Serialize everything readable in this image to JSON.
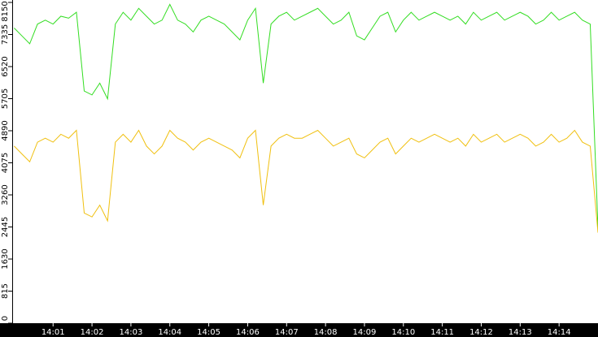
{
  "chart_data": {
    "type": "line",
    "x": [
      840.0,
      840.2,
      840.4,
      840.6,
      840.8,
      841.0,
      841.2,
      841.4,
      841.6,
      841.8,
      842.0,
      842.2,
      842.4,
      842.6,
      842.8,
      843.0,
      843.2,
      843.4,
      843.6,
      843.8,
      844.0,
      844.2,
      844.4,
      844.6,
      844.8,
      845.0,
      845.2,
      845.4,
      845.6,
      845.8,
      846.0,
      846.2,
      846.4,
      846.6,
      846.8,
      847.0,
      847.2,
      847.4,
      847.6,
      847.8,
      848.0,
      848.2,
      848.4,
      848.6,
      848.8,
      849.0,
      849.2,
      849.4,
      849.6,
      849.8,
      850.0,
      850.2,
      850.4,
      850.6,
      850.8,
      851.0,
      851.2,
      851.4,
      851.6,
      851.8,
      852.0,
      852.2,
      852.4,
      852.6,
      852.8,
      853.0,
      853.2,
      853.4,
      853.6,
      853.8,
      854.0,
      854.2,
      854.4,
      854.6,
      854.8,
      855.0
    ],
    "series": [
      {
        "color": "#33dd22",
        "values": [
          7500,
          7300,
          7100,
          7600,
          7700,
          7600,
          7800,
          7750,
          7900,
          5900,
          5800,
          6100,
          5700,
          7600,
          7900,
          7700,
          8000,
          7800,
          7600,
          7700,
          8100,
          7700,
          7600,
          7400,
          7700,
          7800,
          7700,
          7600,
          7400,
          7200,
          7700,
          8000,
          6100,
          7600,
          7800,
          7900,
          7700,
          7800,
          7900,
          8000,
          7800,
          7600,
          7700,
          7900,
          7300,
          7200,
          7500,
          7800,
          7900,
          7400,
          7700,
          7900,
          7700,
          7800,
          7900,
          7800,
          7700,
          7800,
          7600,
          7900,
          7700,
          7800,
          7900,
          7700,
          7800,
          7900,
          7800,
          7600,
          7700,
          7900,
          7700,
          7800,
          7900,
          7700,
          7600,
          2400
        ]
      },
      {
        "color": "#f0c010",
        "values": [
          4500,
          4300,
          4100,
          4600,
          4700,
          4600,
          4800,
          4700,
          4900,
          2800,
          2700,
          3000,
          2600,
          4600,
          4800,
          4600,
          4900,
          4500,
          4300,
          4500,
          4900,
          4700,
          4600,
          4400,
          4600,
          4700,
          4600,
          4500,
          4400,
          4200,
          4700,
          4900,
          3000,
          4500,
          4700,
          4800,
          4700,
          4700,
          4800,
          4900,
          4700,
          4500,
          4600,
          4700,
          4300,
          4200,
          4400,
          4600,
          4700,
          4300,
          4500,
          4700,
          4600,
          4700,
          4800,
          4700,
          4600,
          4700,
          4500,
          4800,
          4600,
          4700,
          4800,
          4600,
          4700,
          4800,
          4700,
          4500,
          4600,
          4800,
          4600,
          4700,
          4900,
          4600,
          4500,
          2300
        ]
      }
    ],
    "xlim": [
      839.95,
      855.0
    ],
    "xticks": [
      {
        "value": 841,
        "label": "14:01"
      },
      {
        "value": 842,
        "label": "14:02"
      },
      {
        "value": 843,
        "label": "14:03"
      },
      {
        "value": 844,
        "label": "14:04"
      },
      {
        "value": 845,
        "label": "14:05"
      },
      {
        "value": 846,
        "label": "14:06"
      },
      {
        "value": 847,
        "label": "14:07"
      },
      {
        "value": 848,
        "label": "14:08"
      },
      {
        "value": 849,
        "label": "14:09"
      },
      {
        "value": 850,
        "label": "14:10"
      },
      {
        "value": 851,
        "label": "14:11"
      },
      {
        "value": 852,
        "label": "14:12"
      },
      {
        "value": 853,
        "label": "14:13"
      },
      {
        "value": 854,
        "label": "14:14"
      }
    ],
    "ylim": [
      0,
      8150
    ],
    "yticks": [
      0,
      815,
      1630,
      2445,
      3260,
      4075,
      4890,
      5705,
      6520,
      7335,
      8150
    ]
  }
}
